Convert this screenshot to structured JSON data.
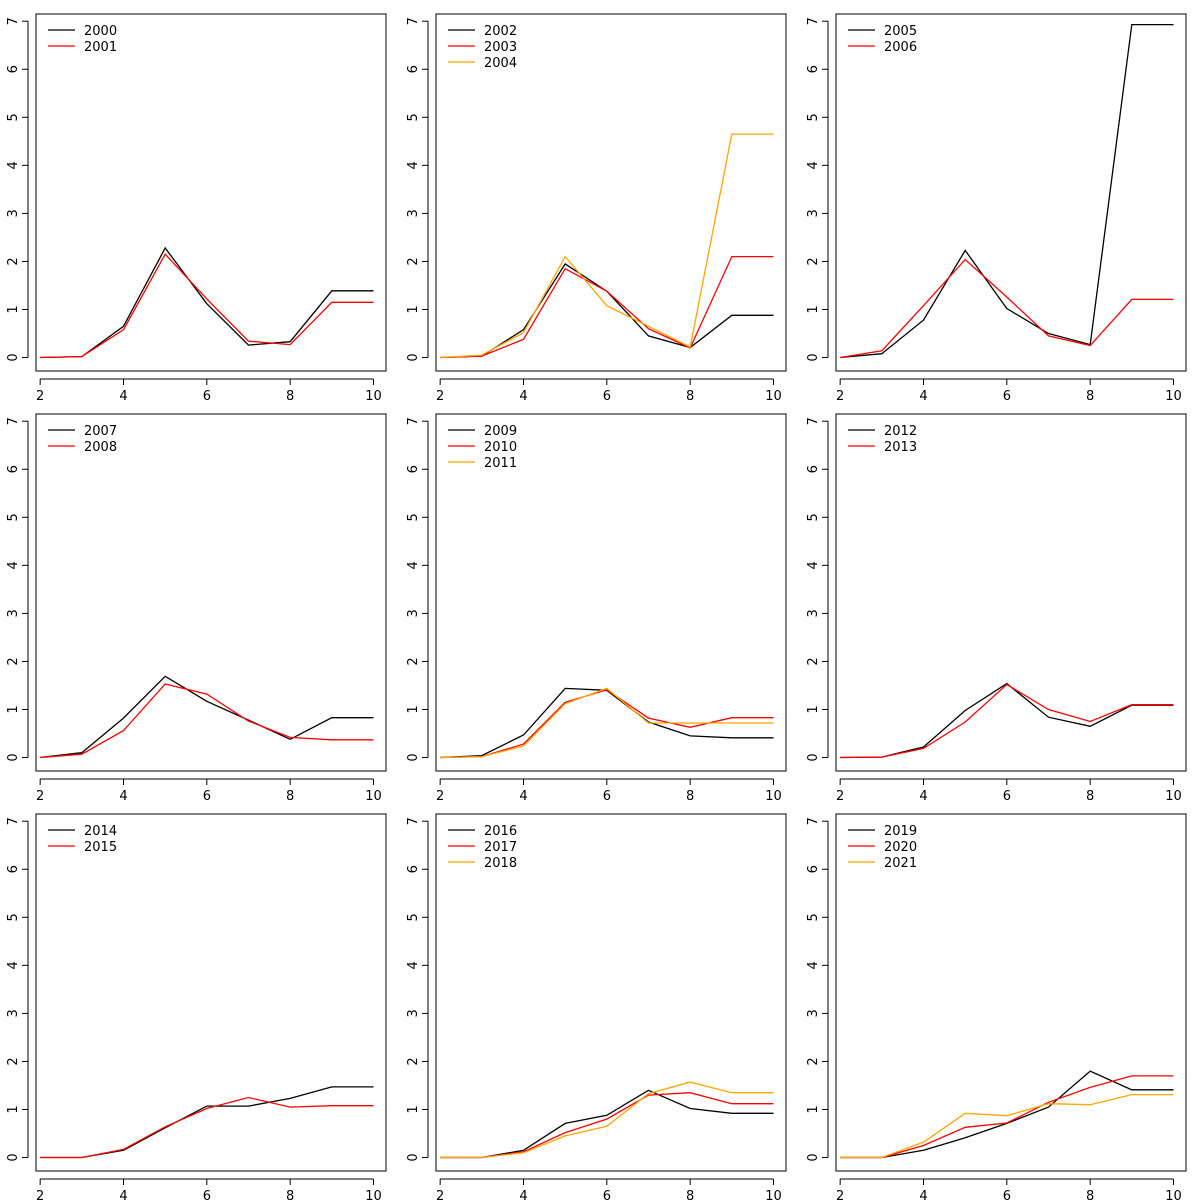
{
  "chart_data": [
    {
      "type": "line",
      "x": [
        2,
        3,
        4,
        5,
        6,
        7,
        8,
        9,
        10
      ],
      "xticks": [
        2,
        4,
        6,
        8,
        10
      ],
      "yticks": [
        0,
        1,
        2,
        3,
        4,
        5,
        6,
        7
      ],
      "xlim": [
        1.9,
        10.3
      ],
      "ylim": [
        -0.28,
        7.15
      ],
      "legend_position": "top-left",
      "series": [
        {
          "name": "2000",
          "color": "#000000",
          "values": [
            0,
            0.02,
            0.65,
            2.28,
            1.12,
            0.26,
            0.33,
            1.39,
            1.39
          ]
        },
        {
          "name": "2001",
          "color": "#ff0000",
          "values": [
            0,
            0.02,
            0.58,
            2.15,
            1.22,
            0.34,
            0.27,
            1.15,
            1.15
          ]
        }
      ]
    },
    {
      "type": "line",
      "x": [
        2,
        3,
        4,
        5,
        6,
        7,
        8,
        9,
        10
      ],
      "xticks": [
        2,
        4,
        6,
        8,
        10
      ],
      "yticks": [
        0,
        1,
        2,
        3,
        4,
        5,
        6,
        7
      ],
      "xlim": [
        1.9,
        10.3
      ],
      "ylim": [
        -0.28,
        7.15
      ],
      "legend_position": "top-left",
      "series": [
        {
          "name": "2002",
          "color": "#000000",
          "values": [
            0,
            0.03,
            0.58,
            1.95,
            1.38,
            0.45,
            0.21,
            0.88,
            0.88
          ]
        },
        {
          "name": "2003",
          "color": "#ff0000",
          "values": [
            0,
            0.03,
            0.38,
            1.85,
            1.38,
            0.6,
            0.2,
            2.1,
            2.1
          ]
        },
        {
          "name": "2004",
          "color": "#ffa500",
          "values": [
            0,
            0.05,
            0.52,
            2.1,
            1.08,
            0.65,
            0.22,
            4.65,
            4.65
          ]
        }
      ]
    },
    {
      "type": "line",
      "x": [
        2,
        3,
        4,
        5,
        6,
        7,
        8,
        9,
        10
      ],
      "xticks": [
        2,
        4,
        6,
        8,
        10
      ],
      "yticks": [
        0,
        1,
        2,
        3,
        4,
        5,
        6,
        7
      ],
      "xlim": [
        1.9,
        10.3
      ],
      "ylim": [
        -0.28,
        7.15
      ],
      "legend_position": "top-left",
      "series": [
        {
          "name": "2005",
          "color": "#000000",
          "values": [
            0,
            0.08,
            0.78,
            2.23,
            1.02,
            0.5,
            0.27,
            6.93,
            6.93
          ]
        },
        {
          "name": "2006",
          "color": "#ff0000",
          "values": [
            0,
            0.14,
            1.08,
            2.04,
            1.26,
            0.45,
            0.25,
            1.21,
            1.21
          ]
        }
      ]
    },
    {
      "type": "line",
      "x": [
        2,
        3,
        4,
        5,
        6,
        7,
        8,
        9,
        10
      ],
      "xticks": [
        2,
        4,
        6,
        8,
        10
      ],
      "yticks": [
        0,
        1,
        2,
        3,
        4,
        5,
        6,
        7
      ],
      "xlim": [
        1.9,
        10.3
      ],
      "ylim": [
        -0.28,
        7.15
      ],
      "legend_position": "top-left",
      "series": [
        {
          "name": "2007",
          "color": "#000000",
          "values": [
            0,
            0.1,
            0.82,
            1.69,
            1.17,
            0.78,
            0.38,
            0.83,
            0.83
          ]
        },
        {
          "name": "2008",
          "color": "#ff0000",
          "values": [
            0,
            0.07,
            0.56,
            1.53,
            1.32,
            0.76,
            0.42,
            0.37,
            0.37
          ]
        }
      ]
    },
    {
      "type": "line",
      "x": [
        2,
        3,
        4,
        5,
        6,
        7,
        8,
        9,
        10
      ],
      "xticks": [
        2,
        4,
        6,
        8,
        10
      ],
      "yticks": [
        0,
        1,
        2,
        3,
        4,
        5,
        6,
        7
      ],
      "xlim": [
        1.9,
        10.3
      ],
      "ylim": [
        -0.28,
        7.15
      ],
      "legend_position": "top-left",
      "series": [
        {
          "name": "2009",
          "color": "#000000",
          "values": [
            0,
            0.04,
            0.47,
            1.44,
            1.4,
            0.74,
            0.45,
            0.41,
            0.41
          ]
        },
        {
          "name": "2010",
          "color": "#ff0000",
          "values": [
            0,
            0.02,
            0.28,
            1.15,
            1.41,
            0.82,
            0.63,
            0.83,
            0.83
          ]
        },
        {
          "name": "2011",
          "color": "#ffa500",
          "values": [
            0,
            0.02,
            0.24,
            1.12,
            1.44,
            0.72,
            0.72,
            0.72,
            0.72
          ]
        }
      ]
    },
    {
      "type": "line",
      "x": [
        2,
        3,
        4,
        5,
        6,
        7,
        8,
        9,
        10
      ],
      "xticks": [
        2,
        4,
        6,
        8,
        10
      ],
      "yticks": [
        0,
        1,
        2,
        3,
        4,
        5,
        6,
        7
      ],
      "xlim": [
        1.9,
        10.3
      ],
      "ylim": [
        -0.28,
        7.15
      ],
      "legend_position": "top-left",
      "series": [
        {
          "name": "2012",
          "color": "#000000",
          "values": [
            0,
            0.01,
            0.22,
            0.98,
            1.54,
            0.84,
            0.65,
            1.09,
            1.09
          ]
        },
        {
          "name": "2013",
          "color": "#ff0000",
          "values": [
            0,
            0.01,
            0.19,
            0.74,
            1.52,
            1.0,
            0.75,
            1.1,
            1.1
          ]
        }
      ]
    },
    {
      "type": "line",
      "x": [
        2,
        3,
        4,
        5,
        6,
        7,
        8,
        9,
        10
      ],
      "xticks": [
        2,
        4,
        6,
        8,
        10
      ],
      "yticks": [
        0,
        1,
        2,
        3,
        4,
        5,
        6,
        7
      ],
      "xlim": [
        1.9,
        10.3
      ],
      "ylim": [
        -0.28,
        7.15
      ],
      "legend_position": "top-left",
      "series": [
        {
          "name": "2014",
          "color": "#000000",
          "values": [
            0,
            0,
            0.15,
            0.62,
            1.07,
            1.07,
            1.23,
            1.47,
            1.47
          ]
        },
        {
          "name": "2015",
          "color": "#ff0000",
          "values": [
            0,
            0,
            0.17,
            0.64,
            1.02,
            1.25,
            1.05,
            1.08,
            1.08
          ]
        }
      ]
    },
    {
      "type": "line",
      "x": [
        2,
        3,
        4,
        5,
        6,
        7,
        8,
        9,
        10
      ],
      "xticks": [
        2,
        4,
        6,
        8,
        10
      ],
      "yticks": [
        0,
        1,
        2,
        3,
        4,
        5,
        6,
        7
      ],
      "xlim": [
        1.9,
        10.3
      ],
      "ylim": [
        -0.28,
        7.15
      ],
      "legend_position": "top-left",
      "series": [
        {
          "name": "2016",
          "color": "#000000",
          "values": [
            0,
            0,
            0.15,
            0.71,
            0.88,
            1.4,
            1.02,
            0.92,
            0.92
          ]
        },
        {
          "name": "2017",
          "color": "#ff0000",
          "values": [
            0,
            0,
            0.12,
            0.52,
            0.8,
            1.3,
            1.35,
            1.12,
            1.12
          ]
        },
        {
          "name": "2018",
          "color": "#ffa500",
          "values": [
            0,
            0,
            0.1,
            0.45,
            0.65,
            1.33,
            1.57,
            1.35,
            1.35
          ]
        }
      ]
    },
    {
      "type": "line",
      "x": [
        2,
        3,
        4,
        5,
        6,
        7,
        8,
        9,
        10
      ],
      "xticks": [
        2,
        4,
        6,
        8,
        10
      ],
      "yticks": [
        0,
        1,
        2,
        3,
        4,
        5,
        6,
        7
      ],
      "xlim": [
        1.9,
        10.3
      ],
      "ylim": [
        -0.28,
        7.15
      ],
      "legend_position": "top-left",
      "series": [
        {
          "name": "2019",
          "color": "#000000",
          "values": [
            0,
            0,
            0.15,
            0.41,
            0.71,
            1.05,
            1.8,
            1.41,
            1.41
          ]
        },
        {
          "name": "2020",
          "color": "#ff0000",
          "values": [
            0,
            0,
            0.25,
            0.63,
            0.72,
            1.15,
            1.46,
            1.7,
            1.7
          ]
        },
        {
          "name": "2021",
          "color": "#ffa500",
          "values": [
            0,
            0,
            0.32,
            0.92,
            0.87,
            1.12,
            1.1,
            1.31,
            1.31
          ]
        }
      ]
    }
  ]
}
